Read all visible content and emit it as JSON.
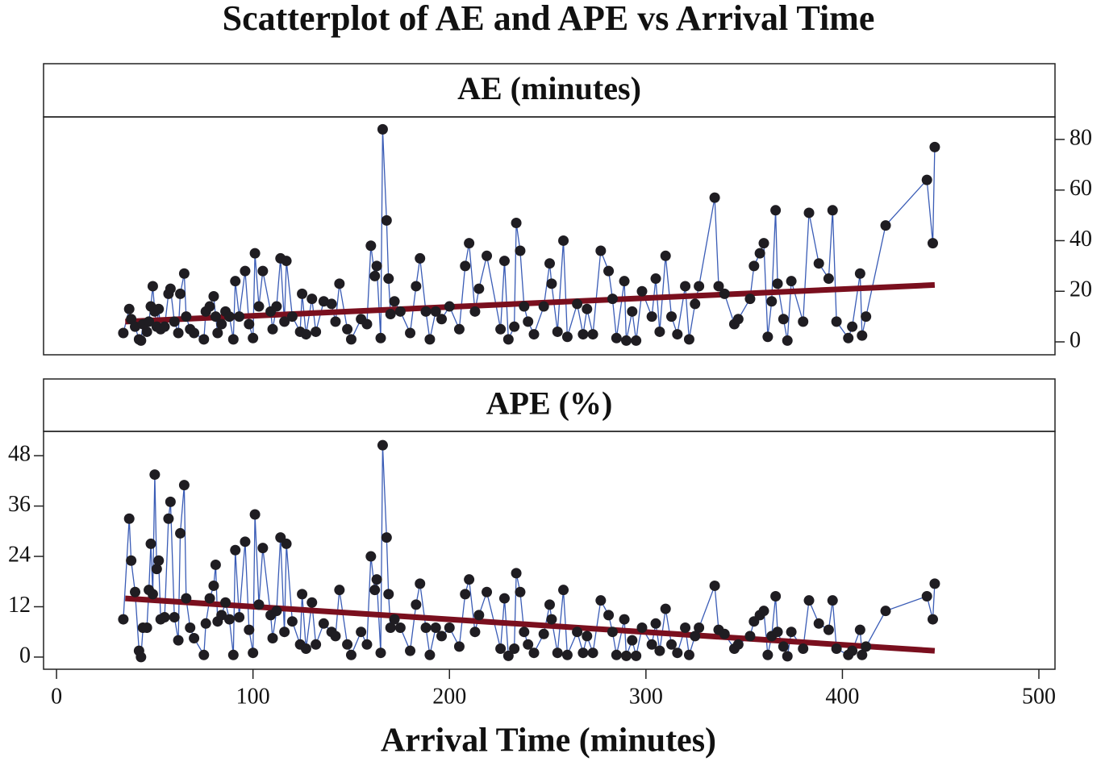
{
  "title": "Scatterplot of AE and APE vs Arrival Time",
  "xlabel": "Arrival Time (minutes)",
  "chart_data": [
    {
      "type": "scatter",
      "title": "AE (minutes)",
      "x": [
        34,
        37,
        38,
        40,
        42,
        43,
        44,
        46,
        47,
        48,
        49,
        50,
        51,
        52,
        53,
        55,
        57,
        58,
        60,
        62,
        63,
        65,
        66,
        68,
        70,
        75,
        76,
        78,
        80,
        81,
        82,
        84,
        86,
        88,
        90,
        91,
        93,
        96,
        98,
        100,
        101,
        103,
        105,
        109,
        110,
        112,
        114,
        116,
        117,
        120,
        124,
        125,
        127,
        130,
        132,
        136,
        140,
        142,
        144,
        148,
        150,
        155,
        158,
        160,
        162,
        163,
        165,
        166,
        168,
        169,
        170,
        172,
        175,
        180,
        183,
        185,
        188,
        190,
        193,
        196,
        200,
        205,
        208,
        210,
        213,
        215,
        219,
        226,
        228,
        230,
        233,
        234,
        236,
        238,
        240,
        243,
        248,
        251,
        252,
        255,
        258,
        260,
        265,
        268,
        270,
        273,
        277,
        281,
        283,
        285,
        289,
        290,
        293,
        295,
        298,
        303,
        305,
        307,
        310,
        313,
        316,
        320,
        322,
        325,
        327,
        335,
        337,
        340,
        345,
        347,
        353,
        355,
        358,
        360,
        362,
        364,
        366,
        367,
        370,
        372,
        374,
        380,
        383,
        388,
        393,
        395,
        397,
        403,
        405,
        409,
        410,
        412,
        422,
        443,
        446,
        447
      ],
      "values": [
        3.5,
        13,
        9,
        6,
        1,
        0.5,
        7,
        4,
        8,
        14,
        22,
        12,
        6,
        13,
        5,
        6,
        19,
        21,
        8,
        3.5,
        19,
        27,
        10,
        5,
        3.5,
        1,
        12,
        14,
        18,
        10,
        3.5,
        7,
        12,
        10,
        1,
        24,
        10,
        28,
        7,
        1.5,
        35,
        14,
        28,
        12,
        5,
        14,
        33,
        8,
        32,
        10,
        4,
        19,
        3,
        17,
        4,
        16,
        15,
        8,
        23,
        5,
        1,
        9,
        7,
        38,
        26,
        30,
        1.5,
        84,
        48,
        25,
        11,
        16,
        12,
        3.5,
        22,
        33,
        12,
        1,
        12,
        9,
        14,
        5,
        30,
        39,
        12,
        21,
        34,
        5,
        32,
        1,
        6,
        47,
        36,
        14,
        8,
        3,
        14,
        31,
        23,
        4,
        40,
        2,
        15,
        3,
        13,
        3,
        36,
        28,
        17,
        1.5,
        24,
        0.5,
        12,
        0.5,
        20,
        10,
        25,
        4,
        34,
        10,
        3,
        22,
        1,
        15,
        22,
        57,
        22,
        19,
        7,
        9,
        17,
        30,
        35,
        39,
        2,
        16,
        52,
        23,
        9,
        0.5,
        24,
        8,
        51,
        31,
        25,
        52,
        8,
        1.5,
        6,
        27,
        2.5,
        10,
        46,
        64,
        39,
        77
      ],
      "color": "#1f1d22",
      "line_color": "#3a5cb6",
      "trend": {
        "x": [
          35,
          447
        ],
        "values": [
          8,
          22.5
        ],
        "color": "#7a0f1e"
      },
      "xlim": [
        -6.6,
        508.2
      ],
      "ylim": [
        -5.1,
        88.9
      ],
      "yticks": [
        0,
        20,
        40,
        60,
        80
      ],
      "ytick_side": "right"
    },
    {
      "type": "scatter",
      "title": "APE (%)",
      "x": [
        34,
        37,
        38,
        40,
        42,
        43,
        44,
        46,
        47,
        48,
        49,
        50,
        51,
        52,
        53,
        55,
        57,
        58,
        60,
        62,
        63,
        65,
        66,
        68,
        70,
        75,
        76,
        78,
        80,
        81,
        82,
        84,
        86,
        88,
        90,
        91,
        93,
        96,
        98,
        100,
        101,
        103,
        105,
        109,
        110,
        112,
        114,
        116,
        117,
        120,
        124,
        125,
        127,
        130,
        132,
        136,
        140,
        142,
        144,
        148,
        150,
        155,
        158,
        160,
        162,
        163,
        165,
        166,
        168,
        169,
        170,
        172,
        175,
        180,
        183,
        185,
        188,
        190,
        193,
        196,
        200,
        205,
        208,
        210,
        213,
        215,
        219,
        226,
        228,
        230,
        233,
        234,
        236,
        238,
        240,
        243,
        248,
        251,
        252,
        255,
        258,
        260,
        265,
        268,
        270,
        273,
        277,
        281,
        283,
        285,
        289,
        290,
        293,
        295,
        298,
        303,
        305,
        307,
        310,
        313,
        316,
        320,
        322,
        325,
        327,
        335,
        337,
        340,
        345,
        347,
        353,
        355,
        358,
        360,
        362,
        364,
        366,
        367,
        370,
        372,
        374,
        380,
        383,
        388,
        393,
        395,
        397,
        403,
        405,
        409,
        410,
        412,
        422,
        443,
        446,
        447
      ],
      "values": [
        9,
        33,
        23,
        15.5,
        1.5,
        0,
        7,
        7,
        16,
        27,
        15,
        43.5,
        21,
        23,
        9,
        9.5,
        33,
        37,
        9.5,
        4,
        29.5,
        41,
        14,
        7,
        4.5,
        0.5,
        8,
        14,
        17,
        22,
        8.5,
        10,
        13,
        9,
        0.5,
        25.5,
        9.5,
        27.5,
        6.5,
        1,
        34,
        12.5,
        26,
        10,
        4.5,
        11,
        28.5,
        6,
        27,
        8.5,
        3,
        15,
        2,
        13,
        3,
        8,
        6,
        5,
        16,
        3,
        0.5,
        6,
        3,
        24,
        16,
        18.5,
        1,
        50.5,
        28.5,
        15,
        7,
        9,
        7,
        1.5,
        12.5,
        17.5,
        7,
        0.5,
        7,
        5,
        7,
        2.5,
        15,
        18.5,
        6,
        10,
        15.5,
        2,
        14,
        0.3,
        2,
        20,
        15.5,
        6,
        3,
        1,
        5.5,
        12.5,
        9,
        1,
        16,
        0.5,
        6,
        1,
        5,
        1,
        13.5,
        10,
        6,
        0.5,
        9,
        0.3,
        4,
        0.3,
        7,
        3,
        8,
        1.5,
        11.5,
        3,
        1,
        7,
        0.5,
        5,
        7,
        17,
        6.5,
        5.5,
        2,
        3,
        5,
        8.5,
        10,
        11,
        0.5,
        5,
        14.5,
        6,
        2.5,
        0.2,
        6,
        2,
        13.5,
        8,
        6.5,
        13.5,
        2,
        0.5,
        1.5,
        6.5,
        0.5,
        2.5,
        11,
        14.5,
        9,
        17.5
      ],
      "color": "#1f1d22",
      "line_color": "#3a5cb6",
      "trend": {
        "x": [
          35,
          447
        ],
        "values": [
          14,
          1.5
        ],
        "color": "#7a0f1e"
      },
      "xlim": [
        -6.6,
        508.2
      ],
      "ylim": [
        -2.9,
        53.8
      ],
      "yticks": [
        0,
        12,
        24,
        36,
        48
      ],
      "ytick_side": "left",
      "xticks": [
        0,
        100,
        200,
        300,
        400,
        500
      ]
    }
  ]
}
